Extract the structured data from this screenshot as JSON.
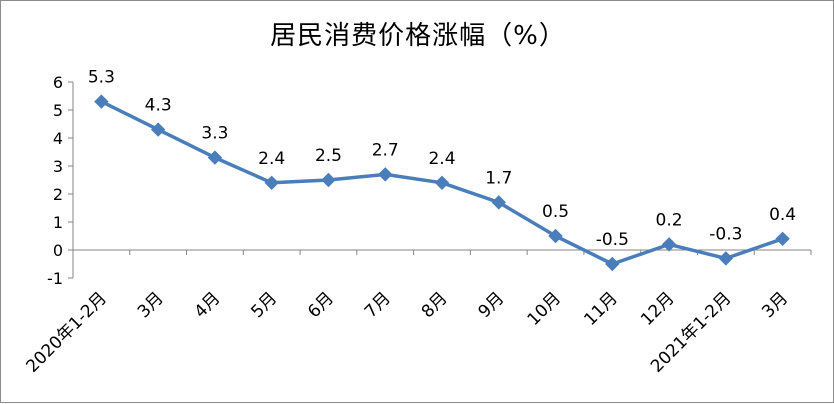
{
  "chart_data": {
    "type": "line",
    "title": "居民消费价格涨幅（%）",
    "categories": [
      "2020年1-2月",
      "3月",
      "4月",
      "5月",
      "6月",
      "7月",
      "8月",
      "9月",
      "10月",
      "11月",
      "12月",
      "2021年1-2月",
      "3月"
    ],
    "series": [
      {
        "values": [
          5.3,
          4.3,
          3.3,
          2.4,
          2.5,
          2.7,
          2.4,
          1.7,
          0.5,
          -0.5,
          0.2,
          -0.3,
          0.4
        ]
      }
    ],
    "data_labels": [
      "5.3",
      "4.3",
      "3.3",
      "2.4",
      "2.5",
      "2.7",
      "2.4",
      "1.7",
      "0.5",
      "-0.5",
      "0.2",
      "-0.3",
      "0.4"
    ],
    "y_ticks": [
      "-1",
      "0",
      "1",
      "2",
      "3",
      "4",
      "5",
      "6"
    ],
    "ylim": [
      -1,
      6
    ],
    "grid": false,
    "legend": "none",
    "colors": {
      "line": "#4a7ebb",
      "marker": "#4a7ebb",
      "axis": "#868686"
    }
  }
}
